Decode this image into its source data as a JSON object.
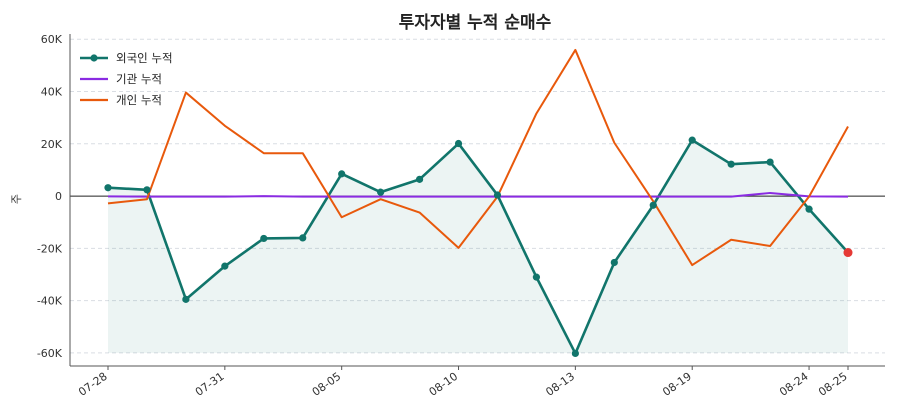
{
  "chart_data": {
    "type": "line",
    "title": "투자자별 누적 순매수",
    "xlabel": "",
    "ylabel": "주",
    "x": [
      "07-28",
      "07-29",
      "07-30",
      "07-31",
      "08-01",
      "08-04",
      "08-05",
      "08-06",
      "08-07",
      "08-10",
      "08-11",
      "08-12",
      "08-13",
      "08-14",
      "08-15",
      "08-19",
      "08-20",
      "08-21",
      "08-24",
      "08-25"
    ],
    "x_tick_labels": [
      "07-28",
      "07-31",
      "08-05",
      "08-10",
      "08-13",
      "08-19",
      "08-24",
      "08-25"
    ],
    "y_ticks": [
      -60000,
      -40000,
      -20000,
      0,
      20000,
      40000,
      60000
    ],
    "y_tick_labels": [
      "-60K",
      "-40K",
      "-20K",
      "0",
      "20K",
      "40K",
      "60K"
    ],
    "ylim": [
      -65000,
      62000
    ],
    "grid": true,
    "legend_position": "top-left",
    "series": [
      {
        "name": "외국인 누적",
        "color": "#11756b",
        "marker": true,
        "fill": true,
        "values": [
          3200,
          2400,
          -39500,
          -26800,
          -16200,
          -16000,
          8500,
          1500,
          6400,
          20100,
          400,
          -31000,
          -60200,
          -25400,
          -3500,
          21400,
          12200,
          13000,
          -5000,
          -21600
        ]
      },
      {
        "name": "기관 누적",
        "color": "#8a2be2",
        "marker": false,
        "fill": false,
        "values": [
          -100,
          -200,
          -200,
          -200,
          0,
          -200,
          -200,
          -200,
          -200,
          -200,
          -200,
          -200,
          -200,
          -200,
          -200,
          -200,
          -200,
          1200,
          -100,
          -200
        ]
      },
      {
        "name": "개인 누적",
        "color": "#e8590c",
        "marker": false,
        "fill": false,
        "values": [
          -2800,
          -1200,
          39600,
          26900,
          16400,
          16400,
          -8100,
          -1200,
          -6300,
          -19800,
          -200,
          31600,
          55900,
          20400,
          -2000,
          -26400,
          -16700,
          -19100,
          -200,
          26600
        ]
      }
    ],
    "highlight_last_point": {
      "series": "외국인 누적",
      "color": "#e53935"
    }
  }
}
